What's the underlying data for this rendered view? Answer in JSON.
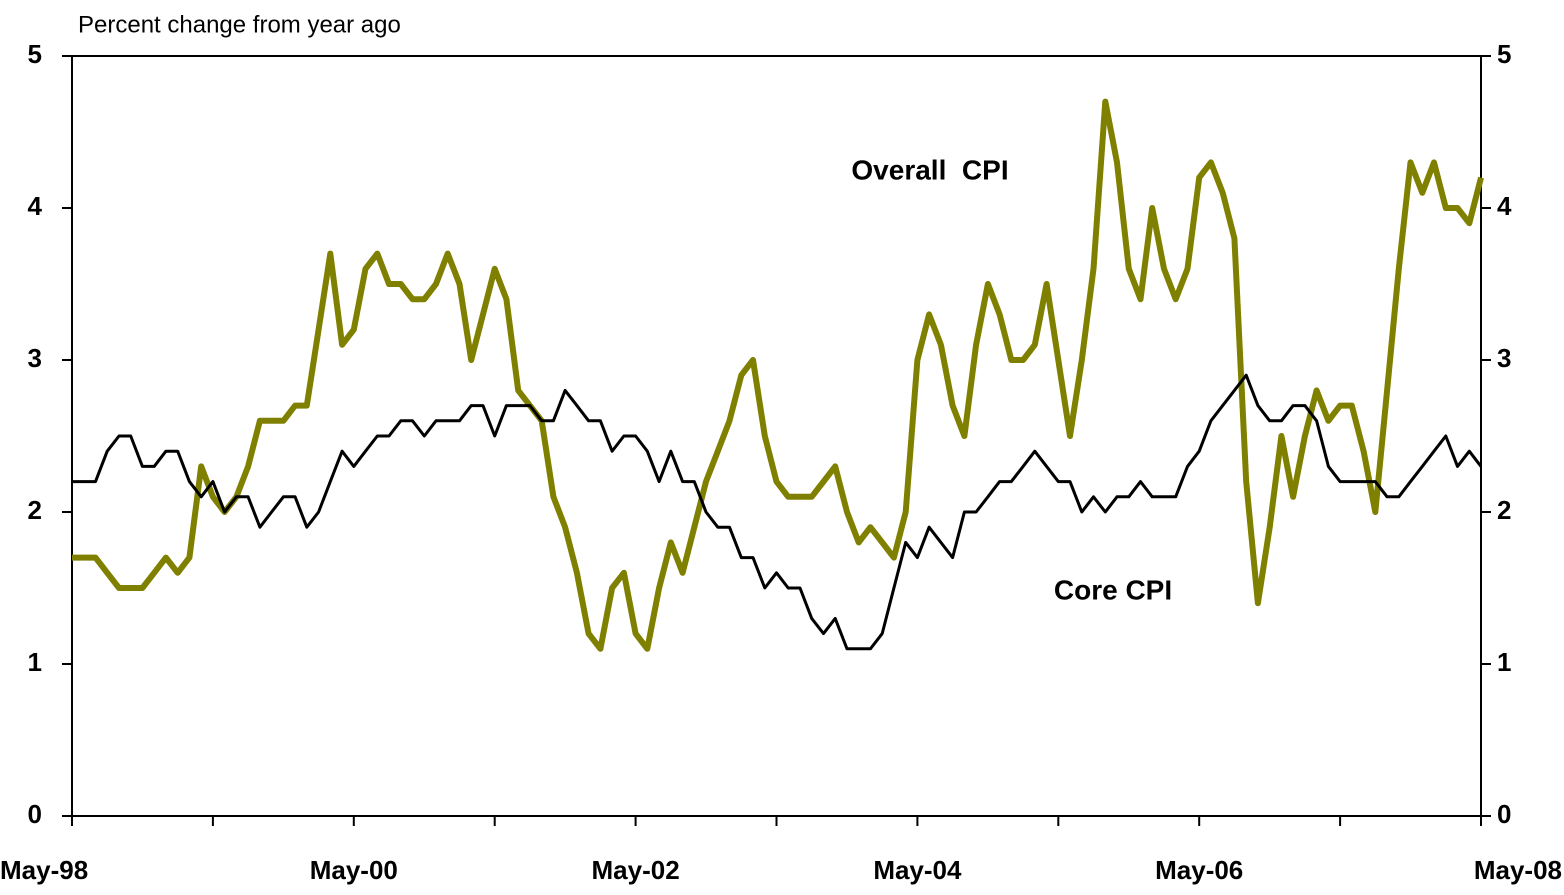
{
  "chart_data": {
    "type": "line",
    "y_label": "Percent change from year ago",
    "categories": [
      "May-98",
      null,
      null,
      null,
      null,
      null,
      null,
      null,
      null,
      null,
      null,
      null,
      null,
      null,
      null,
      null,
      null,
      null,
      null,
      null,
      null,
      null,
      null,
      null,
      "May-00",
      null,
      null,
      null,
      null,
      null,
      null,
      null,
      null,
      null,
      null,
      null,
      null,
      null,
      null,
      null,
      null,
      null,
      null,
      null,
      null,
      null,
      null,
      null,
      "May-02",
      null,
      null,
      null,
      null,
      null,
      null,
      null,
      null,
      null,
      null,
      null,
      null,
      null,
      null,
      null,
      null,
      null,
      null,
      null,
      null,
      null,
      null,
      null,
      "May-04",
      null,
      null,
      null,
      null,
      null,
      null,
      null,
      null,
      null,
      null,
      null,
      null,
      null,
      null,
      null,
      null,
      null,
      null,
      null,
      null,
      null,
      null,
      null,
      "May-06",
      null,
      null,
      null,
      null,
      null,
      null,
      null,
      null,
      null,
      null,
      null,
      null,
      null,
      null,
      null,
      null,
      null,
      null,
      null,
      null,
      null,
      null,
      null,
      "May-08"
    ],
    "series": [
      {
        "name": "Overall  CPI",
        "color": "#808000",
        "values": [
          1.7,
          1.7,
          1.7,
          1.6,
          1.5,
          1.5,
          1.5,
          1.6,
          1.7,
          1.6,
          1.7,
          2.3,
          2.1,
          2.0,
          2.1,
          2.3,
          2.6,
          2.6,
          2.6,
          2.7,
          2.7,
          3.2,
          3.7,
          3.1,
          3.2,
          3.6,
          3.7,
          3.5,
          3.5,
          3.4,
          3.4,
          3.5,
          3.7,
          3.5,
          3.0,
          3.3,
          3.6,
          3.4,
          2.8,
          2.7,
          2.6,
          2.1,
          1.9,
          1.6,
          1.2,
          1.1,
          1.5,
          1.6,
          1.2,
          1.1,
          1.5,
          1.8,
          1.6,
          1.9,
          2.2,
          2.4,
          2.6,
          2.9,
          3.0,
          2.5,
          2.2,
          2.1,
          2.1,
          2.1,
          2.2,
          2.3,
          2.0,
          1.8,
          1.9,
          1.8,
          1.7,
          2.0,
          3.0,
          3.3,
          3.1,
          2.7,
          2.5,
          3.1,
          3.5,
          3.3,
          3.0,
          3.0,
          3.1,
          3.5,
          3.0,
          2.5,
          3.0,
          3.6,
          4.7,
          4.3,
          3.6,
          3.4,
          4.0,
          3.6,
          3.4,
          3.6,
          4.2,
          4.3,
          4.1,
          3.8,
          2.2,
          1.4,
          1.9,
          2.5,
          2.1,
          2.5,
          2.8,
          2.6,
          2.7,
          2.7,
          2.4,
          2.0,
          2.8,
          3.6,
          4.3,
          4.1,
          4.3,
          4.0,
          4.0,
          3.9,
          4.2
        ]
      },
      {
        "name": "Core CPI",
        "color": "#000000",
        "values": [
          2.2,
          2.2,
          2.2,
          2.4,
          2.5,
          2.5,
          2.3,
          2.3,
          2.4,
          2.4,
          2.2,
          2.1,
          2.2,
          2.0,
          2.1,
          2.1,
          1.9,
          2.0,
          2.1,
          2.1,
          1.9,
          2.0,
          2.2,
          2.4,
          2.3,
          2.4,
          2.5,
          2.5,
          2.6,
          2.6,
          2.5,
          2.6,
          2.6,
          2.6,
          2.7,
          2.7,
          2.5,
          2.7,
          2.7,
          2.7,
          2.6,
          2.6,
          2.8,
          2.7,
          2.6,
          2.6,
          2.4,
          2.5,
          2.5,
          2.4,
          2.2,
          2.4,
          2.2,
          2.2,
          2.0,
          1.9,
          1.9,
          1.7,
          1.7,
          1.5,
          1.6,
          1.5,
          1.5,
          1.3,
          1.2,
          1.3,
          1.1,
          1.1,
          1.1,
          1.2,
          1.5,
          1.8,
          1.7,
          1.9,
          1.8,
          1.7,
          2.0,
          2.0,
          2.1,
          2.2,
          2.2,
          2.3,
          2.4,
          2.3,
          2.2,
          2.2,
          2.0,
          2.1,
          2.0,
          2.1,
          2.1,
          2.2,
          2.1,
          2.1,
          2.1,
          2.3,
          2.4,
          2.6,
          2.7,
          2.8,
          2.9,
          2.7,
          2.6,
          2.6,
          2.7,
          2.7,
          2.6,
          2.3,
          2.2,
          2.2,
          2.2,
          2.2,
          2.1,
          2.1,
          2.2,
          2.3,
          2.4,
          2.5,
          2.3,
          2.4,
          2.3
        ]
      }
    ],
    "ylim": [
      0,
      5
    ],
    "yticks": [
      0,
      1,
      2,
      3,
      4,
      5
    ],
    "y2lim": [
      0,
      5
    ],
    "y2ticks": [
      0,
      1,
      2,
      3,
      4,
      5
    ],
    "grid": false
  }
}
